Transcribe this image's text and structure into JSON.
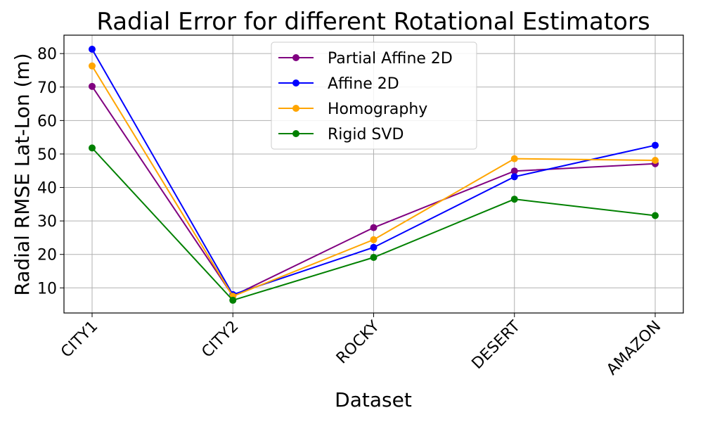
{
  "chart_data": {
    "type": "line",
    "title": "Radial Error for different Rotational Estimators",
    "xlabel": "Dataset",
    "ylabel": "Radial RMSE Lat-Lon (m)",
    "categories": [
      "CITY1",
      "CITY2",
      "ROCKY",
      "DESERT",
      "AMAZON"
    ],
    "ylim": [
      2.5,
      85.5
    ],
    "yticks": [
      10,
      20,
      30,
      40,
      50,
      60,
      70,
      80
    ],
    "grid": true,
    "legend_position": "top-center",
    "series": [
      {
        "name": "Partial Affine 2D",
        "color": "#800080",
        "values": [
          70.2,
          7.6,
          28.0,
          44.9,
          47.1
        ]
      },
      {
        "name": "Affine 2D",
        "color": "#0000ff",
        "values": [
          81.3,
          8.0,
          22.1,
          43.2,
          52.6
        ]
      },
      {
        "name": "Homography",
        "color": "#ffa500",
        "values": [
          76.3,
          7.5,
          24.4,
          48.6,
          48.1
        ]
      },
      {
        "name": "Rigid SVD",
        "color": "#008000",
        "values": [
          51.8,
          6.3,
          19.1,
          36.5,
          31.6
        ]
      }
    ]
  }
}
